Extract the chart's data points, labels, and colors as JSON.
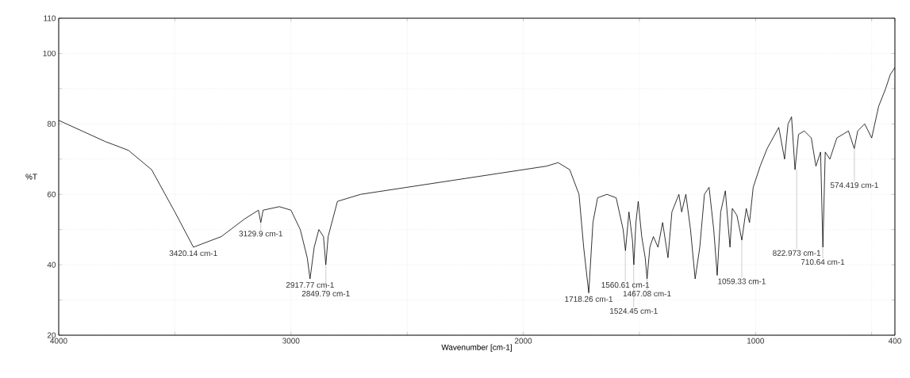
{
  "chart_data": {
    "type": "line",
    "xlabel": "Wavenumber [cm-1]",
    "ylabel": "%T",
    "xlim": [
      4000,
      400
    ],
    "ylim": [
      20,
      110
    ],
    "xticks": [
      4000,
      {
        "value": 3500,
        "label": null
      },
      3000,
      {
        "value": 2500,
        "label": null
      },
      2000,
      {
        "value": 1500,
        "label": null
      },
      1000,
      {
        "value": 500,
        "label": null
      },
      400
    ],
    "yticks": [
      20,
      {
        "value": 30,
        "label": null
      },
      40,
      {
        "value": 50,
        "label": null
      },
      60,
      {
        "value": 70,
        "label": null
      },
      80,
      {
        "value": 90,
        "label": null
      },
      100,
      110
    ],
    "grid": true,
    "marker": "none",
    "line_style": "solid",
    "x": [
      4000,
      3900,
      3800,
      3700,
      3600,
      3500,
      3420,
      3300,
      3200,
      3140,
      3130,
      3120,
      3050,
      3000,
      2960,
      2930,
      2918,
      2900,
      2880,
      2860,
      2850,
      2840,
      2800,
      2700,
      2500,
      2300,
      2100,
      1900,
      1850,
      1800,
      1760,
      1740,
      1718,
      1700,
      1680,
      1640,
      1600,
      1570,
      1560,
      1545,
      1530,
      1524,
      1515,
      1505,
      1490,
      1475,
      1467,
      1455,
      1440,
      1420,
      1400,
      1377,
      1360,
      1330,
      1318,
      1300,
      1280,
      1260,
      1240,
      1220,
      1200,
      1180,
      1165,
      1150,
      1130,
      1110,
      1100,
      1080,
      1059,
      1040,
      1026,
      1010,
      980,
      950,
      900,
      875,
      860,
      845,
      830,
      815,
      790,
      760,
      740,
      720,
      710,
      700,
      680,
      650,
      600,
      575,
      560,
      530,
      500,
      470,
      440,
      420,
      400
    ],
    "series": [
      {
        "color": "#000000",
        "values": [
          81,
          78,
          75,
          72.5,
          67,
          55,
          45,
          48,
          53,
          55.5,
          52,
          55.5,
          56.5,
          55.5,
          50,
          42,
          36,
          45,
          50,
          48,
          40,
          48,
          58,
          60,
          62,
          64,
          66,
          68,
          69,
          67,
          60,
          45,
          32,
          52,
          59,
          60,
          59,
          50,
          44,
          55,
          47,
          40,
          52,
          58,
          48,
          42,
          36,
          45,
          48,
          45,
          52,
          42,
          55,
          60,
          55,
          60,
          50,
          36,
          45,
          60,
          62,
          50,
          37,
          55,
          61,
          45,
          56,
          54,
          47,
          56,
          52,
          62,
          68,
          73,
          79,
          70,
          80,
          82,
          67,
          77,
          78,
          76,
          68,
          72,
          45,
          72,
          70,
          76,
          78,
          73,
          78,
          80,
          76,
          85,
          90,
          94,
          96
        ]
      }
    ],
    "annotations": [
      {
        "text": "3420.14 cm-1",
        "x": 3420.14,
        "y": 45
      },
      {
        "text": "3129.9 cm-1",
        "x": 3129.9,
        "y": 52
      },
      {
        "text": "2917.77 cm-1",
        "x": 2917.77,
        "y": 36
      },
      {
        "text": "2849.79 cm-1",
        "x": 2849.79,
        "y": 40
      },
      {
        "text": "1718.26 cm-1",
        "x": 1718.26,
        "y": 32
      },
      {
        "text": "1560.61 cm-1",
        "x": 1560.61,
        "y": 44
      },
      {
        "text": "1524.45 cm-1",
        "x": 1524.45,
        "y": 40
      },
      {
        "text": "1467.08 cm-1",
        "x": 1467.08,
        "y": 36
      },
      {
        "text": "1059.33 cm-1",
        "x": 1059.33,
        "y": 47
      },
      {
        "text": "822.973 cm-1",
        "x": 822.973,
        "y": 67
      },
      {
        "text": "710.64 cm-1",
        "x": 710.64,
        "y": 45
      },
      {
        "text": "574.419 cm-1",
        "x": 574.419,
        "y": 73
      }
    ]
  }
}
